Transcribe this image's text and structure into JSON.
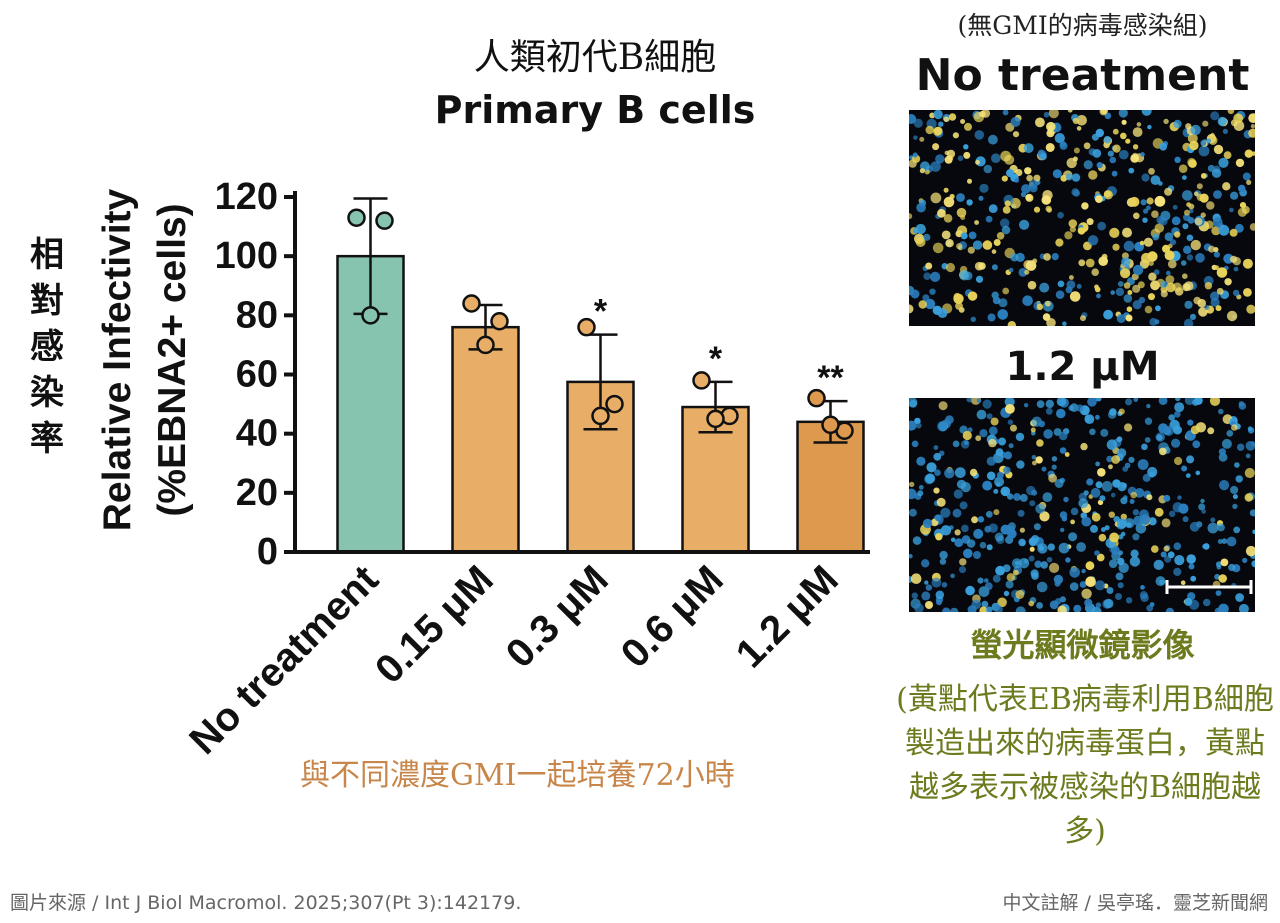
{
  "header": {
    "title_zh": "人類初代B細胞",
    "title_en": "Primary B cells"
  },
  "ylabel_zh": "相對感染率",
  "bottom_note": "與不同濃度GMI一起培養72小時",
  "panel": {
    "caption_top": "(無GMI的病毒感染組)",
    "title_top": "No treatment",
    "title_bottom": "1.2 μM",
    "fluor_title": "螢光顯微鏡影像",
    "fluor_note": "(黃點代表EB病毒利用B細胞製造出來的病毒蛋白，黃點越多表示被感染的B細胞越多)"
  },
  "footer": {
    "source": "圖片來源 / Int J Biol Macromol. 2025;307(Pt 3):142179.",
    "credit": "中文註解 / 吳亭瑤．靈芝新聞網"
  },
  "colors": {
    "control_bar": "#86c4b0",
    "treated_bar": "#e8ae67",
    "treated_bar_dark": "#dd9a4f",
    "note_orange": "#c8864a",
    "olive": "#6d7a1d"
  },
  "chart_data": {
    "type": "bar",
    "title": "Primary B cells",
    "ylabel_lines": [
      "Relative Infectivity",
      "(%EBNA2+ cells)"
    ],
    "ylim": [
      0,
      120
    ],
    "yticks": [
      0,
      20,
      40,
      60,
      80,
      100,
      120
    ],
    "categories": [
      "No treatment",
      "0.15 μM",
      "0.3 μM",
      "0.6 μM",
      "1.2 μM"
    ],
    "values": [
      100,
      76,
      57.5,
      49,
      44
    ],
    "error": [
      19.5,
      7.5,
      16,
      8.5,
      7
    ],
    "significance": [
      "",
      "",
      "*",
      "*",
      "**"
    ],
    "points": [
      [
        113,
        112,
        80
      ],
      [
        84,
        78,
        70
      ],
      [
        76,
        50,
        46
      ],
      [
        58,
        46,
        45
      ],
      [
        52,
        41,
        43
      ]
    ]
  }
}
